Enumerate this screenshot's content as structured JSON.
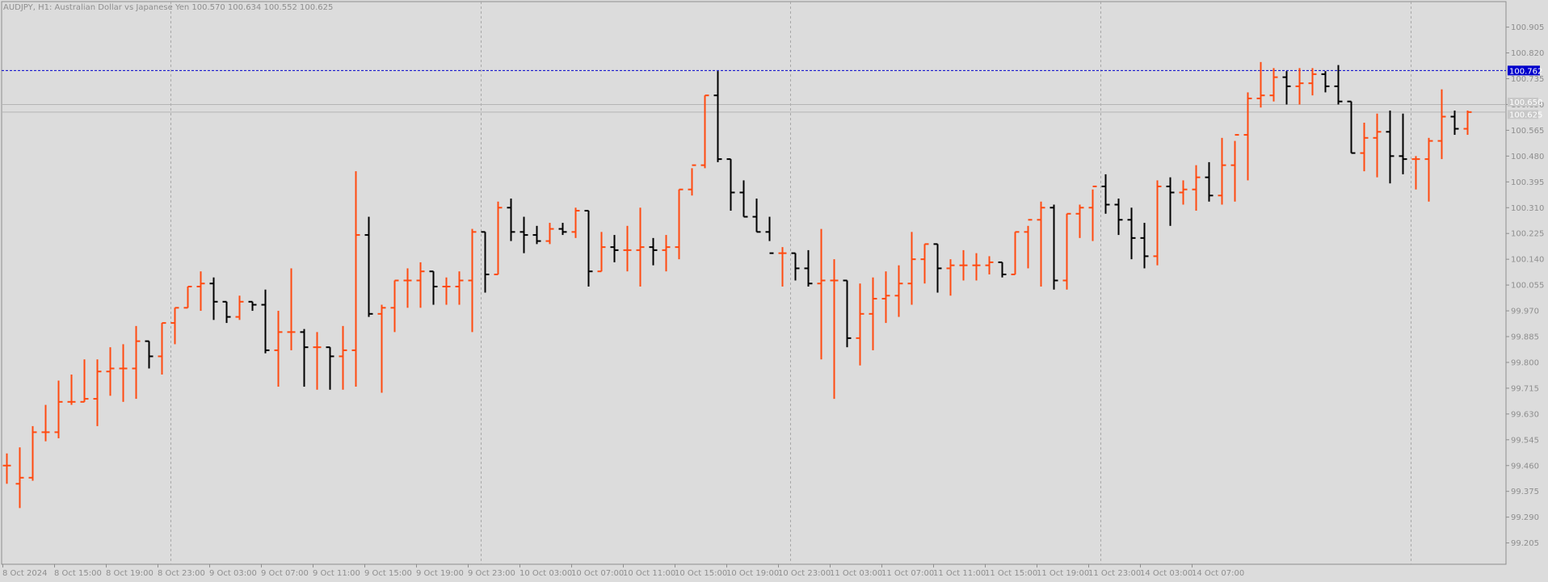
{
  "chart_data": {
    "type": "ohlc",
    "title": "AUDJPY, H1:  Australian Dollar vs Japanese Yen  100.570 100.634 100.552 100.625",
    "symbol": "AUDJPY",
    "timeframe": "H1",
    "description": "Australian Dollar vs Japanese Yen",
    "ohlc_readout": "100.570 100.634 100.552 100.625",
    "ylim": [
      99.13,
      100.96
    ],
    "y_ticks": [
      "100.905",
      "100.820",
      "100.735",
      "100.650",
      "100.565",
      "100.480",
      "100.395",
      "100.310",
      "100.225",
      "100.140",
      "100.055",
      "99.970",
      "99.885",
      "99.800",
      "99.715",
      "99.630",
      "99.545",
      "99.460",
      "99.375",
      "99.290",
      "99.205"
    ],
    "x_ticks": [
      "8 Oct 2024",
      "8 Oct 15:00",
      "8 Oct 19:00",
      "8 Oct 23:00",
      "9 Oct 03:00",
      "9 Oct 07:00",
      "9 Oct 11:00",
      "9 Oct 15:00",
      "9 Oct 19:00",
      "9 Oct 23:00",
      "10 Oct 03:00",
      "10 Oct 07:00",
      "10 Oct 11:00",
      "10 Oct 15:00",
      "10 Oct 19:00",
      "10 Oct 23:00",
      "11 Oct 03:00",
      "11 Oct 07:00",
      "11 Oct 11:00",
      "11 Oct 15:00",
      "11 Oct 19:00",
      "11 Oct 23:00",
      "14 Oct 03:00",
      "14 Oct 07:00"
    ],
    "grid": true,
    "horizontal_line": {
      "price": 100.762,
      "label": "100.762"
    },
    "bid_ask_labels": [
      "100.650",
      "100.625"
    ],
    "colors": {
      "bull": "#ff4a10",
      "bear": "#000000",
      "tag_bg": "#0000cc",
      "hline": "#0000cc",
      "grid": "#a8a8a8",
      "background": "#dcdcdc",
      "text": "#8e8e8e"
    },
    "bars": [
      [
        99.46,
        99.5,
        99.4,
        99.46
      ],
      [
        99.4,
        99.52,
        99.32,
        99.42
      ],
      [
        99.42,
        99.59,
        99.41,
        99.57
      ],
      [
        99.57,
        99.66,
        99.54,
        99.57
      ],
      [
        99.57,
        99.74,
        99.55,
        99.67
      ],
      [
        99.67,
        99.76,
        99.66,
        99.67
      ],
      [
        99.67,
        99.81,
        99.67,
        99.68
      ],
      [
        99.68,
        99.81,
        99.59,
        99.77
      ],
      [
        99.77,
        99.85,
        99.69,
        99.78
      ],
      [
        99.78,
        99.86,
        99.67,
        99.78
      ],
      [
        99.78,
        99.92,
        99.68,
        99.87
      ],
      [
        99.87,
        99.87,
        99.78,
        99.82
      ],
      [
        99.82,
        99.93,
        99.76,
        99.93
      ],
      [
        99.93,
        99.98,
        99.86,
        99.98
      ],
      [
        99.98,
        100.05,
        99.98,
        100.05
      ],
      [
        100.05,
        100.1,
        99.97,
        100.06
      ],
      [
        100.06,
        100.08,
        99.94,
        100.0
      ],
      [
        100.0,
        100.0,
        99.93,
        99.95
      ],
      [
        99.95,
        100.02,
        99.94,
        100.0
      ],
      [
        100.0,
        100.0,
        99.97,
        99.99
      ],
      [
        99.99,
        100.04,
        99.83,
        99.84
      ],
      [
        99.84,
        99.97,
        99.72,
        99.9
      ],
      [
        99.9,
        100.11,
        99.84,
        99.9
      ],
      [
        99.9,
        99.91,
        99.72,
        99.85
      ],
      [
        99.85,
        99.9,
        99.71,
        99.85
      ],
      [
        99.85,
        99.85,
        99.71,
        99.82
      ],
      [
        99.82,
        99.92,
        99.71,
        99.84
      ],
      [
        99.84,
        100.43,
        99.72,
        100.22
      ],
      [
        100.22,
        100.28,
        99.95,
        99.96
      ],
      [
        99.96,
        99.99,
        99.7,
        99.98
      ],
      [
        99.98,
        100.07,
        99.9,
        100.07
      ],
      [
        100.07,
        100.11,
        99.98,
        100.07
      ],
      [
        100.07,
        100.13,
        99.98,
        100.1
      ],
      [
        100.1,
        100.1,
        99.99,
        100.05
      ],
      [
        100.05,
        100.08,
        99.99,
        100.05
      ],
      [
        100.05,
        100.1,
        99.99,
        100.07
      ],
      [
        100.07,
        100.24,
        99.9,
        100.23
      ],
      [
        100.23,
        100.23,
        100.03,
        100.09
      ],
      [
        100.09,
        100.33,
        100.09,
        100.31
      ],
      [
        100.31,
        100.34,
        100.2,
        100.23
      ],
      [
        100.23,
        100.28,
        100.16,
        100.22
      ],
      [
        100.22,
        100.25,
        100.19,
        100.2
      ],
      [
        100.2,
        100.26,
        100.19,
        100.24
      ],
      [
        100.24,
        100.26,
        100.22,
        100.23
      ],
      [
        100.23,
        100.31,
        100.21,
        100.3
      ],
      [
        100.3,
        100.3,
        100.05,
        100.1
      ],
      [
        100.1,
        100.23,
        100.1,
        100.18
      ],
      [
        100.18,
        100.22,
        100.13,
        100.17
      ],
      [
        100.17,
        100.25,
        100.1,
        100.17
      ],
      [
        100.17,
        100.31,
        100.05,
        100.18
      ],
      [
        100.18,
        100.21,
        100.12,
        100.17
      ],
      [
        100.17,
        100.22,
        100.1,
        100.18
      ],
      [
        100.18,
        100.37,
        100.14,
        100.37
      ],
      [
        100.37,
        100.44,
        100.35,
        100.45
      ],
      [
        100.45,
        100.68,
        100.44,
        100.68
      ],
      [
        100.68,
        100.76,
        100.46,
        100.47
      ],
      [
        100.47,
        100.47,
        100.3,
        100.36
      ],
      [
        100.36,
        100.4,
        100.28,
        100.28
      ],
      [
        100.28,
        100.34,
        100.23,
        100.23
      ],
      [
        100.23,
        100.28,
        100.2,
        100.16
      ],
      [
        100.16,
        100.18,
        100.05,
        100.16
      ],
      [
        100.16,
        100.16,
        100.07,
        100.11
      ],
      [
        100.11,
        100.17,
        100.05,
        100.06
      ],
      [
        100.06,
        100.24,
        99.81,
        100.07
      ],
      [
        100.07,
        100.14,
        99.68,
        100.07
      ],
      [
        100.07,
        100.07,
        99.85,
        99.88
      ],
      [
        99.88,
        100.06,
        99.79,
        99.96
      ],
      [
        99.96,
        100.08,
        99.84,
        100.01
      ],
      [
        100.01,
        100.1,
        99.93,
        100.02
      ],
      [
        100.02,
        100.12,
        99.95,
        100.06
      ],
      [
        100.06,
        100.23,
        99.99,
        100.14
      ],
      [
        100.14,
        100.19,
        100.06,
        100.19
      ],
      [
        100.19,
        100.19,
        100.03,
        100.11
      ],
      [
        100.11,
        100.14,
        100.02,
        100.12
      ],
      [
        100.12,
        100.17,
        100.07,
        100.12
      ],
      [
        100.12,
        100.16,
        100.07,
        100.12
      ],
      [
        100.12,
        100.15,
        100.09,
        100.13
      ],
      [
        100.13,
        100.13,
        100.08,
        100.09
      ],
      [
        100.09,
        100.23,
        100.09,
        100.23
      ],
      [
        100.23,
        100.25,
        100.11,
        100.27
      ],
      [
        100.27,
        100.33,
        100.05,
        100.31
      ],
      [
        100.31,
        100.32,
        100.04,
        100.07
      ],
      [
        100.07,
        100.29,
        100.04,
        100.29
      ],
      [
        100.29,
        100.32,
        100.21,
        100.31
      ],
      [
        100.31,
        100.37,
        100.2,
        100.38
      ],
      [
        100.38,
        100.42,
        100.29,
        100.32
      ],
      [
        100.32,
        100.34,
        100.22,
        100.27
      ],
      [
        100.27,
        100.31,
        100.14,
        100.21
      ],
      [
        100.21,
        100.26,
        100.11,
        100.15
      ],
      [
        100.15,
        100.4,
        100.12,
        100.38
      ],
      [
        100.38,
        100.41,
        100.25,
        100.36
      ],
      [
        100.36,
        100.4,
        100.32,
        100.37
      ],
      [
        100.37,
        100.45,
        100.3,
        100.41
      ],
      [
        100.41,
        100.46,
        100.33,
        100.35
      ],
      [
        100.35,
        100.54,
        100.32,
        100.45
      ],
      [
        100.45,
        100.53,
        100.33,
        100.55
      ],
      [
        100.55,
        100.69,
        100.4,
        100.67
      ],
      [
        100.67,
        100.79,
        100.64,
        100.68
      ],
      [
        100.68,
        100.77,
        100.66,
        100.74
      ],
      [
        100.74,
        100.76,
        100.65,
        100.71
      ],
      [
        100.71,
        100.77,
        100.65,
        100.72
      ],
      [
        100.72,
        100.77,
        100.68,
        100.75
      ],
      [
        100.75,
        100.76,
        100.69,
        100.71
      ],
      [
        100.71,
        100.78,
        100.65,
        100.66
      ],
      [
        100.66,
        100.66,
        100.49,
        100.49
      ],
      [
        100.49,
        100.59,
        100.43,
        100.54
      ],
      [
        100.54,
        100.62,
        100.41,
        100.56
      ],
      [
        100.56,
        100.63,
        100.39,
        100.48
      ],
      [
        100.48,
        100.62,
        100.42,
        100.47
      ],
      [
        100.47,
        100.48,
        100.37,
        100.47
      ],
      [
        100.47,
        100.54,
        100.33,
        100.53
      ],
      [
        100.53,
        100.7,
        100.47,
        100.61
      ],
      [
        100.61,
        100.63,
        100.55,
        100.57
      ],
      [
        100.57,
        100.63,
        100.55,
        100.625
      ]
    ]
  }
}
